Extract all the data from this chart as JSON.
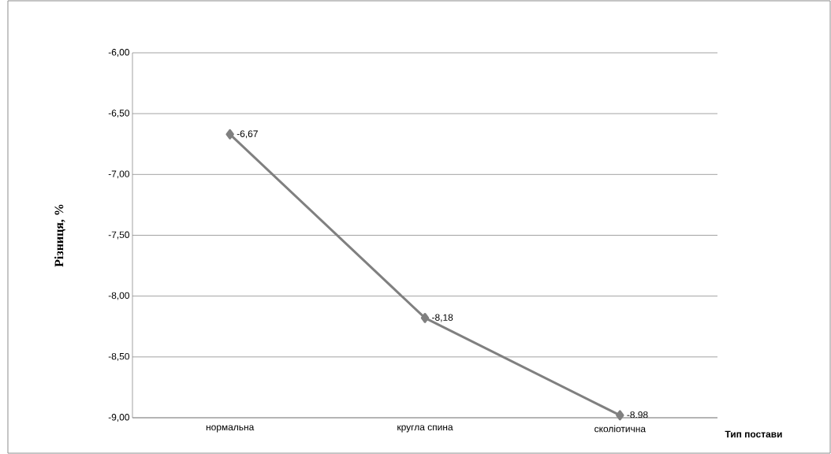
{
  "chart_data": {
    "type": "line",
    "ylabel": "Різниця, %",
    "xlabel": "Тип постави",
    "categories": [
      "нормальна",
      "кругла спина",
      "сколіотична"
    ],
    "series": [
      {
        "color": "#808080",
        "values": [
          -6.67,
          -8.18,
          -8.98
        ],
        "value_labels": [
          "-6,67",
          "-8,18",
          "-8,98"
        ]
      }
    ],
    "ylim": [
      -9,
      -6
    ],
    "yticks": [
      {
        "value": -9,
        "label": "-9,00"
      },
      {
        "value": -8.5,
        "label": "-8,50"
      },
      {
        "value": -8,
        "label": "-8,00"
      },
      {
        "value": -7.5,
        "label": "-7,50"
      },
      {
        "value": -7,
        "label": "-7,00"
      },
      {
        "value": -6.5,
        "label": "-6,50"
      },
      {
        "value": -6,
        "label": "-6,00"
      }
    ],
    "grid": "y",
    "marker": "diamond",
    "line_style": "solid"
  }
}
